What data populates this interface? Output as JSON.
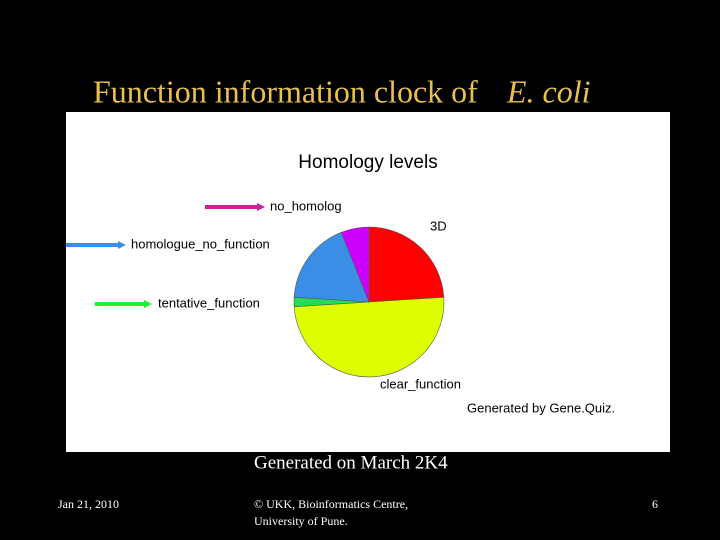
{
  "slide": {
    "title": [
      "Function information clock of",
      "E. coli"
    ],
    "caption": "Generated on March 2K4",
    "footer": {
      "date": "Jan 21, 2010",
      "credit": [
        "© UKK, Bioinformatics Centre,",
        "University of Pune."
      ],
      "page": "6"
    }
  },
  "chart_data": {
    "type": "pie",
    "title": "Homology levels",
    "note": "Generated by Gene.Quiz.",
    "categories": [
      "3D",
      "clear_function",
      "tentative_function",
      "homologue_no_function",
      "no_homolog"
    ],
    "values": [
      24,
      50,
      2,
      18,
      6
    ],
    "colors": [
      "#ff0000",
      "#ddff00",
      "#22dd55",
      "#3a8ee6",
      "#cc00ff"
    ],
    "arrow_colors": [
      null,
      null,
      "#22ee33",
      "#3a8ee6",
      "#cc2299"
    ]
  }
}
